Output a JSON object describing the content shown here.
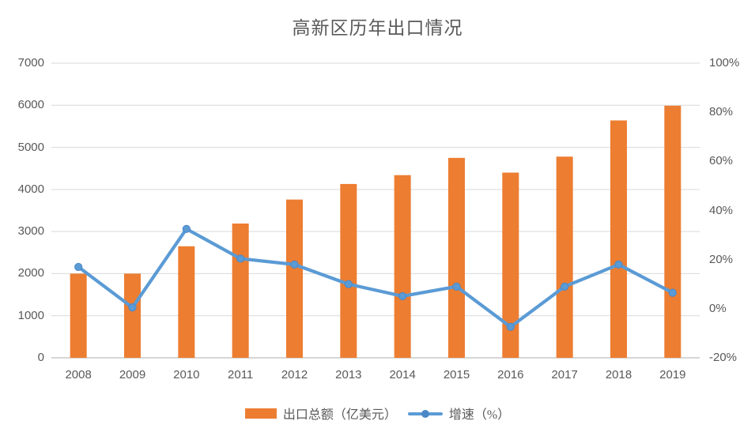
{
  "chart_data": {
    "type": "combo bar+line",
    "title": "高新区历年出口情况",
    "categories": [
      "2008",
      "2009",
      "2010",
      "2011",
      "2012",
      "2013",
      "2014",
      "2015",
      "2016",
      "2017",
      "2018",
      "2019"
    ],
    "series": [
      {
        "name": "出口总额（亿美元）",
        "type": "bar",
        "axis": "left",
        "color": "#ED7D31",
        "values": [
          2000,
          2000,
          2650,
          3190,
          3760,
          4130,
          4340,
          4750,
          4400,
          4780,
          5640,
          5990
        ]
      },
      {
        "name": "增速（%）",
        "type": "line",
        "axis": "right",
        "color": "#5B9BD5",
        "marker_color": "#4A87C6",
        "values": [
          17.0,
          0.5,
          32.5,
          20.4,
          18.0,
          10.0,
          5.1,
          9.0,
          -7.4,
          9.0,
          18.0,
          6.5
        ]
      }
    ],
    "left_axis": {
      "min": 0,
      "max": 7000,
      "step": 1000,
      "ticks": [
        "0",
        "1000",
        "2000",
        "3000",
        "4000",
        "5000",
        "6000",
        "7000"
      ]
    },
    "right_axis": {
      "min": -20,
      "max": 100,
      "step": 20,
      "ticks": [
        "-20%",
        "0%",
        "20%",
        "40%",
        "60%",
        "80%",
        "100%"
      ]
    },
    "gridlines": "horizontal at left-axis intervals",
    "legend_position": "bottom-center",
    "colors": {
      "bar": "#ED7D31",
      "line": "#5B9BD5",
      "gridline": "#D9D9D9",
      "axis_line": "#C8C8C8",
      "text": "#595959",
      "background": "#FFFFFF"
    }
  }
}
